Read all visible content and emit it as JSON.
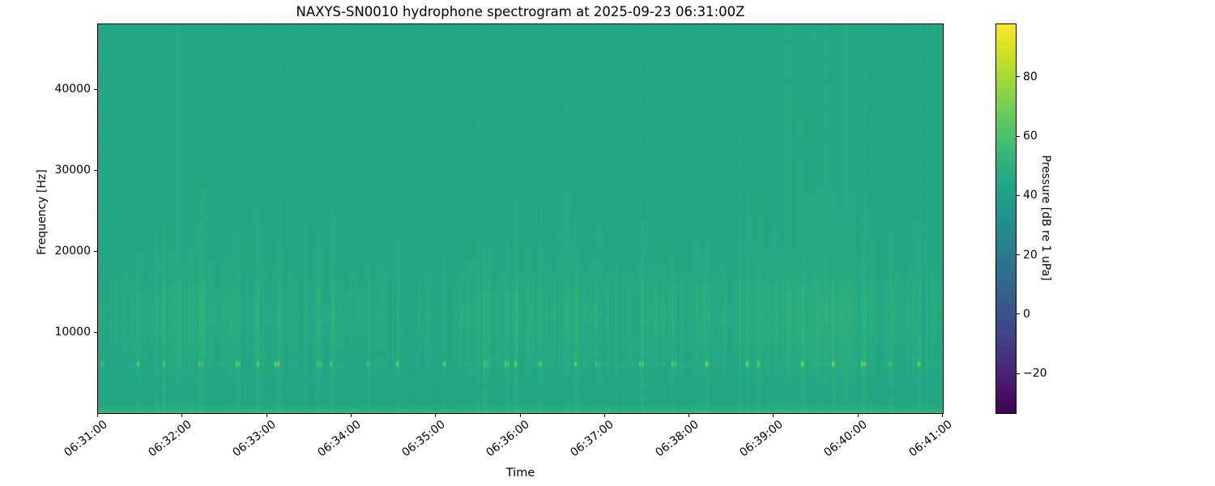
{
  "figure": {
    "kind": "matplotlib-style spectrogram figure",
    "background": "#ffffff"
  },
  "chart_data": {
    "type": "heatmap",
    "title": "NAXYS-SN0010 hydrophone spectrogram at 2025-09-23 06:31:00Z",
    "xlabel": "Time",
    "ylabel": "Frequency [Hz]",
    "x_tick_labels": [
      "06:31:00",
      "06:32:00",
      "06:33:00",
      "06:34:00",
      "06:35:00",
      "06:36:00",
      "06:37:00",
      "06:38:00",
      "06:39:00",
      "06:40:00",
      "06:41:00"
    ],
    "x_range": [
      "06:31:00",
      "06:41:00"
    ],
    "ylim": [
      0,
      48000
    ],
    "y_ticks": [
      10000,
      20000,
      30000,
      40000
    ],
    "grid": false,
    "legend": null,
    "colorbar": {
      "label": "Pressure [dB re 1 uPa]",
      "tick_values": [
        80,
        60,
        40,
        20,
        0,
        -20
      ],
      "tick_labels": [
        "80",
        "60",
        "40",
        "20",
        "0",
        "−20"
      ],
      "clim": [
        -33.3,
        97.7
      ],
      "colormap": "viridis",
      "position": "right"
    },
    "colormap_stops": [
      [
        0.0,
        "#440154"
      ],
      [
        0.1,
        "#482475"
      ],
      [
        0.2,
        "#414487"
      ],
      [
        0.3,
        "#355f8d"
      ],
      [
        0.4,
        "#2a788e"
      ],
      [
        0.5,
        "#21918c"
      ],
      [
        0.6,
        "#22a884"
      ],
      [
        0.7,
        "#44bf70"
      ],
      [
        0.8,
        "#7ad151"
      ],
      [
        0.9,
        "#bddf26"
      ],
      [
        1.0,
        "#fde725"
      ]
    ],
    "field_summary": {
      "background_level_db": 45.3,
      "broadband_hump": {
        "center_hz": 12200,
        "peak_boost_db": 1.7
      },
      "tonal_line_hz": 6050,
      "transient_pings": {
        "freq_hz": 6050,
        "peak_level_db_range": [
          58,
          78
        ],
        "approx_count": 30
      },
      "low_freq_band": {
        "below_hz": 950,
        "boost_db_max": 10
      },
      "vertical_streak_noise_db": 2
    },
    "texture": {
      "seed": 7,
      "ping_db_min": 12,
      "ping_db_max": 30
    }
  }
}
